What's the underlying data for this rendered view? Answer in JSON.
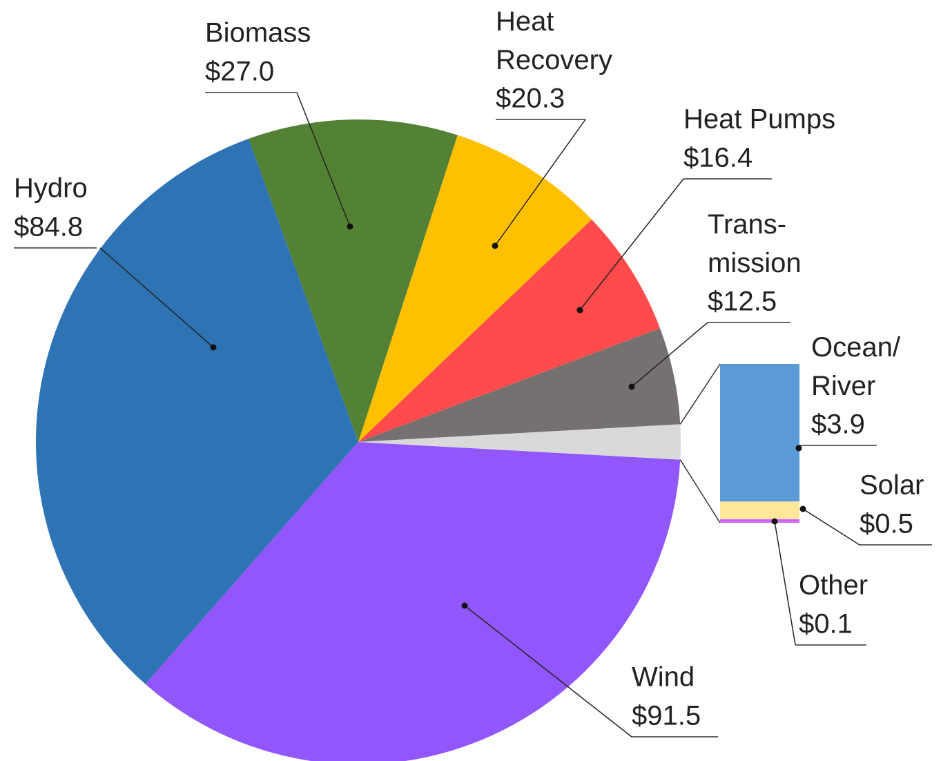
{
  "chart_data": {
    "type": "pie",
    "categories": [
      "Wind",
      "Hydro",
      "Biomass",
      "Heat Recovery",
      "Heat Pumps",
      "Trans-mission",
      "Ocean/River",
      "Solar",
      "Other"
    ],
    "values": [
      91.5,
      84.8,
      27.0,
      20.3,
      16.4,
      12.5,
      3.9,
      0.5,
      0.1
    ],
    "value_labels": [
      "$91.5",
      "$84.8",
      "$27.0",
      "$20.3",
      "$16.4",
      "$12.5",
      "$3.9",
      "$0.5",
      "$0.1"
    ],
    "colors": [
      "#9157fd",
      "#2e74b5",
      "#548235",
      "#ffc000",
      "#ff4b4b",
      "#767171",
      "#5b9bd5",
      "#ffe699",
      "#cc66ff"
    ],
    "others_color": "#d9d9d9",
    "split_last": 3
  }
}
